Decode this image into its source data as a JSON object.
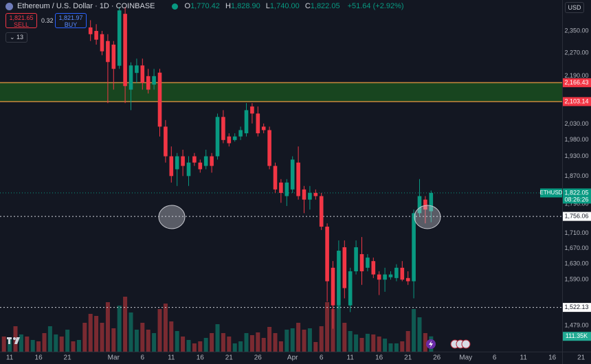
{
  "header": {
    "title": "Ethereum / U.S. Dollar · 1D · COINBASE",
    "ohlc": [
      {
        "key": "O",
        "value": "1,770.42"
      },
      {
        "key": "H",
        "value": "1,828.90"
      },
      {
        "key": "L",
        "value": "1,740.00"
      },
      {
        "key": "C",
        "value": "1,822.05"
      }
    ],
    "change": "+51.64 (+2.92%)",
    "sell": {
      "price": "1,821.65",
      "label": "SELL"
    },
    "spread": "0.32",
    "buy": {
      "price": "1,821.97",
      "label": "BUY"
    },
    "indicators": "13",
    "currency": "USD"
  },
  "chart_data": {
    "type": "candlestick",
    "log_scale": true,
    "grid": false,
    "up_color": "#089981",
    "down_color": "#f23645",
    "categories": [
      null,
      "11",
      null,
      null,
      null,
      null,
      "16",
      null,
      null,
      null,
      null,
      "21",
      null,
      null,
      null,
      null,
      null,
      null,
      null,
      "Mar",
      null,
      null,
      null,
      null,
      "6",
      null,
      null,
      null,
      null,
      "11",
      null,
      null,
      null,
      null,
      "16",
      null,
      null,
      null,
      null,
      "21",
      null,
      null,
      null,
      null,
      "26",
      null,
      null,
      null,
      null,
      null,
      "Apr",
      null,
      null,
      null,
      null,
      "6",
      null,
      null,
      null,
      null,
      "11",
      null,
      null,
      null,
      null,
      "16",
      null,
      null,
      null,
      null,
      "21",
      null,
      null,
      null,
      null,
      "26",
      null,
      null,
      null,
      null,
      "May",
      null,
      null,
      null,
      null,
      "6",
      null,
      null,
      null,
      null,
      "11",
      null,
      null,
      null,
      null,
      "16",
      null,
      null,
      null,
      null,
      "21"
    ],
    "open": [
      null,
      null,
      null,
      null,
      null,
      null,
      null,
      null,
      null,
      null,
      null,
      null,
      null,
      null,
      null,
      2363,
      2350,
      2338,
      2313,
      2300,
      2225,
      2414,
      2143,
      2200,
      2226,
      2189,
      2160,
      2201,
      2022,
      1930,
      1891,
      1930,
      1871,
      1930,
      1911,
      1901,
      1930,
      1930,
      2053,
      1991,
      1980,
      1991,
      2001,
      2087,
      2064,
      2022,
      2011,
      1901,
      1852,
      1813,
      1832,
      1911,
      1832,
      1803,
      1822,
      1813,
      1728,
      1620,
      1527,
      1673,
      1527,
      1611,
      1655,
      1620,
      1637,
      1603,
      1590,
      1596,
      1594,
      1620,
      1594,
      1586,
      1765,
      1803,
      1770.42,
      null,
      null,
      null,
      null,
      null,
      null,
      null,
      null,
      null,
      null,
      null,
      null,
      null,
      null,
      null,
      null,
      null,
      null,
      null,
      null,
      null,
      null,
      null,
      null,
      null,
      null
    ],
    "high": [
      null,
      null,
      null,
      null,
      null,
      null,
      null,
      null,
      null,
      null,
      null,
      null,
      null,
      null,
      null,
      2390,
      2375,
      2350,
      2338,
      2313,
      2440,
      2440,
      2237,
      2250,
      2250,
      2214,
      2214,
      2214,
      2043,
      1960,
      1940,
      1950,
      1930,
      1940,
      1920,
      1950,
      1940,
      2064,
      2075,
      2001,
      2001,
      2022,
      2098,
      2098,
      2087,
      2032,
      2022,
      1911,
      1862,
      1862,
      1930,
      1960,
      1842,
      1842,
      1832,
      1822,
      1737,
      1637,
      1691,
      1691,
      1620,
      1691,
      1700,
      1655,
      1646,
      1611,
      1620,
      1611,
      1629,
      1637,
      1611,
      1775,
      1862,
      1813,
      1828.9,
      null,
      null,
      null,
      null,
      null,
      null,
      null,
      null,
      null,
      null,
      null,
      null,
      null,
      null,
      null,
      null,
      null,
      null,
      null,
      null,
      null,
      null,
      null,
      null,
      null,
      null
    ],
    "low": [
      null,
      null,
      null,
      null,
      null,
      null,
      null,
      null,
      null,
      null,
      null,
      null,
      null,
      null,
      null,
      2313,
      2300,
      2262,
      2098,
      2143,
      2214,
      2098,
      2075,
      2166,
      2143,
      2130,
      2143,
      1991,
      1911,
      1852,
      1842,
      1871,
      1842,
      1901,
      1881,
      1891,
      1881,
      1920,
      1970,
      1960,
      1975,
      1980,
      1991,
      2032,
      1991,
      2001,
      1891,
      1822,
      1794,
      1785,
      1822,
      1803,
      1765,
      1775,
      1803,
      1719,
      1536,
      1472,
      1519,
      1544,
      1511,
      1603,
      1577,
      1611,
      1594,
      1552,
      1560,
      1590,
      1586,
      1586,
      1577,
      1544,
      1756,
      1737,
      1740,
      null,
      null,
      null,
      null,
      null,
      null,
      null,
      null,
      null,
      null,
      null,
      null,
      null,
      null,
      null,
      null,
      null,
      null,
      null,
      null,
      null,
      null,
      null,
      null,
      null,
      null
    ],
    "close": [
      null,
      null,
      null,
      null,
      null,
      null,
      null,
      null,
      null,
      null,
      null,
      null,
      null,
      null,
      null,
      2338,
      2318,
      2276,
      2238,
      2214,
      2427,
      2155,
      2226,
      2226,
      2166,
      2143,
      2189,
      2022,
      1930,
      1871,
      1930,
      1901,
      1911,
      1911,
      1891,
      1930,
      1901,
      2053,
      1980,
      1970,
      1991,
      2011,
      2075,
      2064,
      2001,
      2011,
      1901,
      1832,
      1822,
      1852,
      1920,
      1813,
      1803,
      1822,
      1813,
      1728,
      1586,
      1527,
      1664,
      1569,
      1611,
      1673,
      1611,
      1646,
      1603,
      1590,
      1603,
      1603,
      1620,
      1590,
      1586,
      1765,
      1813,
      1775,
      1822.05,
      null,
      null,
      null,
      null,
      null,
      null,
      null,
      null,
      null,
      null,
      null,
      null,
      null,
      null,
      null,
      null,
      null,
      null,
      null,
      null,
      null,
      null,
      null,
      null,
      null,
      null
    ],
    "ylim": [
      1420,
      2467
    ],
    "yticks": [
      {
        "value": 2350,
        "label": "2,350.00"
      },
      {
        "value": 2270,
        "label": "2,270.00"
      },
      {
        "value": 2190,
        "label": "2,190.00"
      },
      {
        "value": 2030,
        "label": "2,030.00"
      },
      {
        "value": 1980,
        "label": "1,980.00"
      },
      {
        "value": 1930,
        "label": "1,930.00"
      },
      {
        "value": 1870,
        "label": "1,870.00"
      },
      {
        "value": 1790,
        "label": "1,790.00"
      },
      {
        "value": 1710,
        "label": "1,710.00"
      },
      {
        "value": 1670,
        "label": "1,670.00"
      },
      {
        "value": 1630,
        "label": "1,630.00"
      },
      {
        "value": 1590,
        "label": "1,590.00"
      },
      {
        "value": 1479,
        "label": "1,479.00"
      }
    ],
    "zone": {
      "top": {
        "value": 2166.43,
        "label": "2,166.43"
      },
      "bottom": {
        "value": 2103.14,
        "label": "2,103.14"
      },
      "color": "#1a4a1f",
      "border_color": "#c98a3c",
      "label_color": "#f23645"
    },
    "levels": [
      {
        "value": 1756.06,
        "label": "1,756.06"
      },
      {
        "value": 1522.13,
        "label": "1,522.13"
      }
    ],
    "last": {
      "symbol": "ETHUSD",
      "value": 1822.05,
      "label": "1,822.05",
      "countdown": "08:26:26"
    },
    "volume": {
      "values": [
        110000,
        100000,
        185000,
        125000,
        110000,
        85000,
        75000,
        135000,
        185000,
        125000,
        110000,
        160000,
        75000,
        85000,
        210000,
        275000,
        260000,
        210000,
        360000,
        170000,
        335000,
        400000,
        285000,
        160000,
        210000,
        160000,
        135000,
        310000,
        350000,
        220000,
        150000,
        110000,
        85000,
        60000,
        75000,
        100000,
        135000,
        200000,
        135000,
        110000,
        60000,
        75000,
        135000,
        120000,
        140000,
        100000,
        180000,
        135000,
        75000,
        160000,
        170000,
        210000,
        160000,
        170000,
        70000,
        185000,
        360000,
        310000,
        335000,
        210000,
        150000,
        125000,
        100000,
        130000,
        125000,
        110000,
        95000,
        60000,
        60000,
        75000,
        150000,
        310000,
        250000,
        135000,
        111350,
        null,
        null,
        null,
        null,
        null,
        null,
        null,
        null,
        null,
        null,
        null,
        null,
        null,
        null,
        null,
        null,
        null,
        null,
        null,
        null,
        null,
        null,
        null,
        null,
        null,
        null
      ],
      "direction": [
        "down",
        "up",
        "down",
        "up",
        "down",
        "up",
        "down",
        "down",
        "up",
        "up",
        "down",
        "up",
        "down",
        "up",
        "down",
        "down",
        "down",
        "down",
        "down",
        "down",
        "up",
        "down",
        "up",
        "up",
        "down",
        "down",
        "up",
        "down",
        "down",
        "down",
        "up",
        "down",
        "up",
        "down",
        "down",
        "up",
        "down",
        "up",
        "down",
        "down",
        "up",
        "up",
        "up",
        "down",
        "down",
        "down",
        "down",
        "down",
        "down",
        "up",
        "up",
        "down",
        "down",
        "up",
        "down",
        "down",
        "down",
        "down",
        "up",
        "down",
        "up",
        "up",
        "down",
        "up",
        "down",
        "down",
        "up",
        "up",
        "up",
        "down",
        "down",
        "up",
        "up",
        "down",
        "up",
        null,
        null,
        null,
        null,
        null,
        null,
        null,
        null,
        null,
        null,
        null,
        null,
        null,
        null,
        null,
        null,
        null,
        null,
        null,
        null,
        null,
        null,
        null,
        null,
        null,
        null
      ],
      "up_color": "#0f5a52",
      "down_color": "#7a2a31",
      "vlim": [
        0,
        450000
      ],
      "last_label": "111.35K",
      "label_color": "#22ab94"
    }
  }
}
